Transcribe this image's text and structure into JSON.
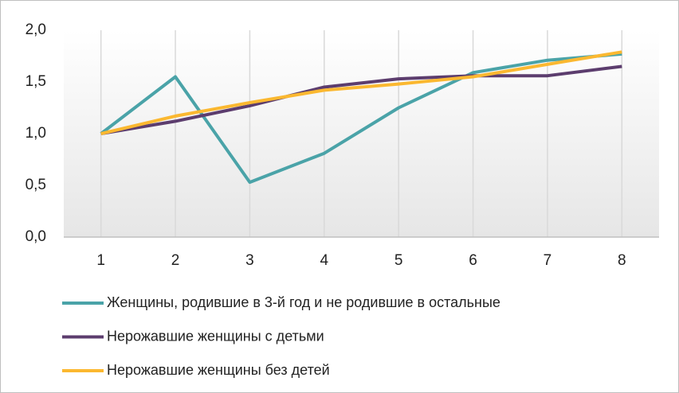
{
  "chart_data": {
    "type": "line",
    "categories": [
      1,
      2,
      3,
      4,
      5,
      6,
      7,
      8
    ],
    "series": [
      {
        "name": "Женщины, родившие в 3-й год и не родившие в остальные",
        "color": "#4aa3a8",
        "values": [
          1.0,
          1.55,
          0.53,
          0.81,
          1.25,
          1.59,
          1.71,
          1.77
        ]
      },
      {
        "name": "Нерожавшие женщины с детьми",
        "color": "#5c3d6e",
        "values": [
          1.0,
          1.12,
          1.27,
          1.45,
          1.53,
          1.56,
          1.56,
          1.65
        ]
      },
      {
        "name": "Нерожавшие женщины без детей",
        "color": "#fbb830",
        "values": [
          1.0,
          1.17,
          1.3,
          1.42,
          1.48,
          1.55,
          1.67,
          1.79
        ]
      }
    ],
    "ylim": [
      0,
      2
    ],
    "yticks": [
      {
        "value": 0,
        "label": "0,0"
      },
      {
        "value": 0.5,
        "label": "0,5"
      },
      {
        "value": 1,
        "label": "1,0"
      },
      {
        "value": 1.5,
        "label": "1,5"
      },
      {
        "value": 2,
        "label": "2,0"
      }
    ],
    "grid": "x"
  }
}
